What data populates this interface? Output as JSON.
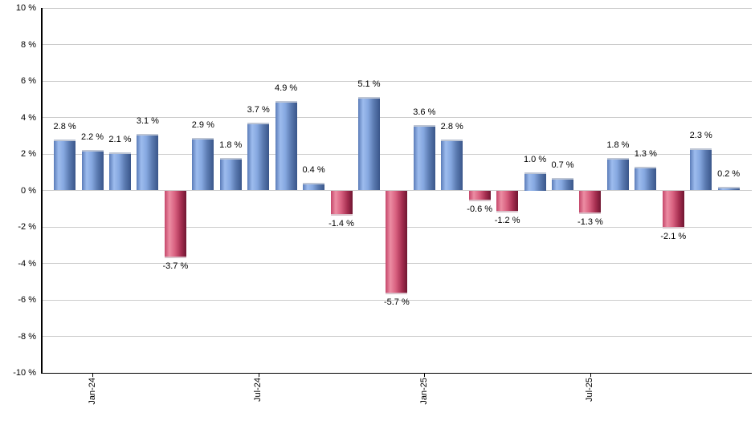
{
  "chart_data": {
    "type": "bar",
    "title": "",
    "values": [
      2.8,
      2.2,
      2.1,
      3.1,
      -3.7,
      2.9,
      1.8,
      3.7,
      4.9,
      0.4,
      -1.4,
      5.1,
      -5.7,
      3.6,
      2.8,
      -0.6,
      -1.2,
      1.0,
      0.7,
      -1.3,
      1.8,
      1.3,
      -2.1,
      2.3,
      0.2
    ],
    "bar_labels": [
      "2.8 %",
      "2.2 %",
      "2.1 %",
      "3.1 %",
      "-3.7 %",
      "2.9 %",
      "1.8 %",
      "3.7 %",
      "4.9 %",
      "0.4 %",
      "-1.4 %",
      "5.1 %",
      "-5.7 %",
      "3.6 %",
      "2.8 %",
      "-0.6 %",
      "-1.2 %",
      "1.0 %",
      "0.7 %",
      "-1.3 %",
      "1.8 %",
      "1.3 %",
      "-2.1 %",
      "2.3 %",
      "0.2 %"
    ],
    "x_tick_labels": [
      {
        "label": "Jan-24",
        "bar_index": 1
      },
      {
        "label": "Jul-24",
        "bar_index": 7
      },
      {
        "label": "Jan-25",
        "bar_index": 13
      },
      {
        "label": "Jul-25",
        "bar_index": 19
      }
    ],
    "y_tick_labels": [
      {
        "label": "10 %",
        "value": 10
      },
      {
        "label": "8 %",
        "value": 8
      },
      {
        "label": "6 %",
        "value": 6
      },
      {
        "label": "4 %",
        "value": 4
      },
      {
        "label": "2 %",
        "value": 2
      },
      {
        "label": "0 %",
        "value": 0
      },
      {
        "label": "-2 %",
        "value": -2
      },
      {
        "label": "-4 %",
        "value": -4
      },
      {
        "label": "-6 %",
        "value": -6
      },
      {
        "label": "-8 %",
        "value": -8
      },
      {
        "label": "-10 %",
        "value": -10
      }
    ],
    "ylim": [
      -10,
      10
    ],
    "y_step": 2,
    "grid": true,
    "legend": "none",
    "colors": {
      "positive_bar_gradient": [
        "#5b7cb8",
        "#9dbcee",
        "#86a8e0",
        "#5a7ab0",
        "#3a568a"
      ],
      "negative_bar_gradient": [
        "#c5476b",
        "#ec8da3",
        "#d8607f",
        "#a52e50",
        "#701631"
      ],
      "gridline": "#cccccc",
      "axis": "#000000",
      "label_text": "#000000",
      "background": "#ffffff"
    }
  }
}
